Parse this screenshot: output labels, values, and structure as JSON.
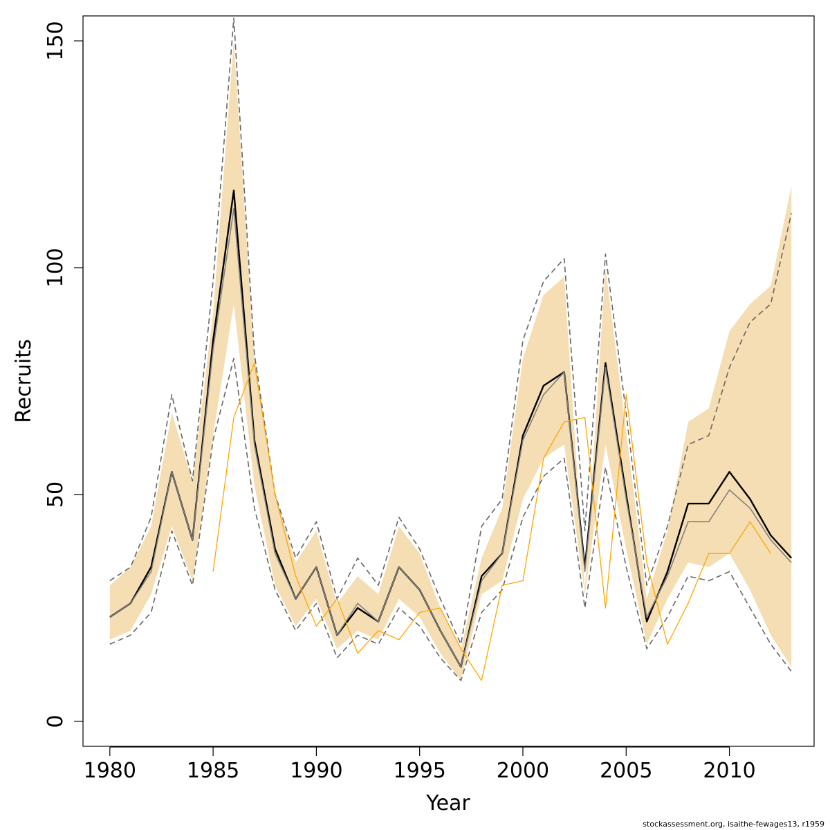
{
  "chart_data": {
    "type": "line",
    "xlabel": "Year",
    "ylabel": "Recruits",
    "xlim": [
      1978.7,
      2014.1
    ],
    "ylim": [
      -5.5,
      155.5
    ],
    "xticks": [
      1980,
      1985,
      1990,
      1995,
      2000,
      2005,
      2010
    ],
    "yticks": [
      0,
      50,
      100,
      150
    ],
    "x": [
      1980,
      1981,
      1982,
      1983,
      1984,
      1985,
      1986,
      1987,
      1988,
      1989,
      1990,
      1991,
      1992,
      1993,
      1994,
      1995,
      1996,
      1997,
      1998,
      1999,
      2000,
      2001,
      2002,
      2003,
      2004,
      2005,
      2006,
      2007,
      2008,
      2009,
      2010,
      2011,
      2012,
      2013
    ],
    "band": {
      "color": "#f5deb3",
      "upper": [
        30,
        34,
        43,
        68,
        53,
        90,
        150,
        80,
        50,
        35,
        42,
        26,
        32,
        28,
        43,
        37,
        25,
        16,
        36,
        47,
        80,
        94,
        98,
        29,
        100,
        64,
        27,
        42,
        66,
        69,
        86,
        92,
        96,
        118
      ],
      "lower": [
        18,
        20,
        28,
        43,
        31,
        63,
        92,
        52,
        30,
        21,
        27,
        16,
        20,
        18,
        27,
        23,
        15,
        9,
        28,
        31,
        49,
        58,
        61,
        28,
        61,
        38,
        17,
        27,
        35,
        34,
        37,
        29,
        19,
        12
      ]
    },
    "series": [
      {
        "color": "#000000",
        "width": 2.4,
        "dash": "",
        "values": [
          23,
          26,
          34,
          55,
          40,
          84,
          117,
          62,
          38,
          27,
          34,
          19,
          25,
          22,
          34,
          29,
          20,
          12,
          32,
          37,
          63,
          74,
          77,
          34,
          79,
          50,
          22,
          33,
          48,
          48,
          55,
          49,
          41,
          36
        ]
      },
      {
        "color": "#808080",
        "width": 1.6,
        "dash": "",
        "values": [
          23,
          26,
          33,
          55,
          40,
          82,
          113,
          61,
          37,
          27,
          34,
          19,
          26,
          22,
          34,
          29,
          20,
          12,
          31,
          37,
          62,
          72,
          77,
          33,
          78,
          49,
          23,
          32,
          44,
          44,
          51,
          47,
          40,
          35
        ]
      },
      {
        "color": "#666666",
        "width": 1.6,
        "dash": "8,5",
        "values": [
          31,
          34,
          45,
          72,
          53,
          97,
          155,
          81,
          50,
          36,
          44,
          27,
          36,
          30,
          45,
          38,
          27,
          17,
          43,
          49,
          84,
          97,
          102,
          42,
          103,
          68,
          30,
          43,
          61,
          63,
          78,
          88,
          92,
          112
        ]
      },
      {
        "color": "#666666",
        "width": 1.6,
        "dash": "8,5",
        "values": [
          17,
          19,
          24,
          42,
          30,
          62,
          80,
          47,
          29,
          20,
          26,
          14,
          19,
          17,
          25,
          21,
          14,
          9,
          24,
          29,
          45,
          54,
          58,
          25,
          56,
          34,
          16,
          23,
          32,
          31,
          33,
          25,
          17,
          11
        ]
      },
      {
        "color": "#ffa500",
        "width": 1.3,
        "dash": "",
        "x": [
          1985,
          1986,
          1987,
          1988,
          1989,
          1990,
          1991,
          1992,
          1993,
          1994,
          1995,
          1996,
          1997,
          1998,
          1999,
          2000,
          2001,
          2002,
          2003,
          2004,
          2005,
          2006,
          2007,
          2008,
          2009,
          2010,
          2011,
          2012
        ],
        "values": [
          33,
          67,
          79,
          50,
          32,
          21,
          27,
          15,
          20,
          18,
          24,
          25,
          16,
          9,
          30,
          31,
          58,
          66,
          67,
          25,
          72,
          35,
          17,
          26,
          37,
          37,
          44,
          37
        ]
      }
    ]
  },
  "footer": {
    "credit": "stockassessment.org, isaithe-fewages13, r1959"
  }
}
